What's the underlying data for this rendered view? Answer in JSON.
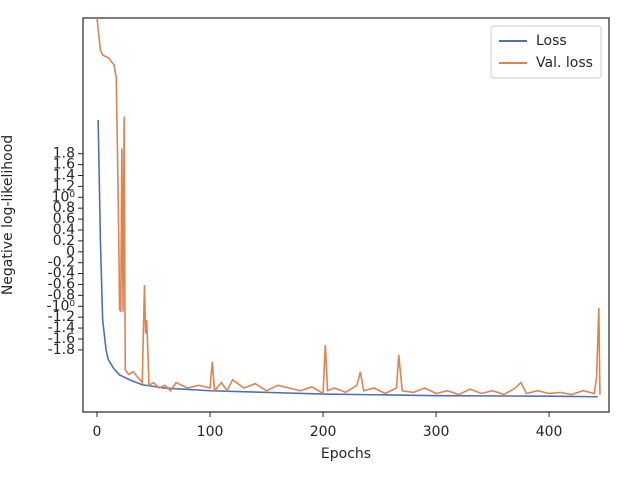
{
  "chart_data": {
    "type": "line",
    "x_label": "Epochs",
    "y_label": "Negative log-likelihood",
    "xlim": [
      -12.4,
      453
    ],
    "xticks": [
      0,
      100,
      200,
      300,
      400
    ],
    "ylim": [
      -2.94,
      4.29
    ],
    "yticks": [
      -1.8,
      -1.6,
      -1.4,
      -1.2,
      {
        "value": -1,
        "label": "-10⁰"
      },
      -0.8,
      -0.6,
      -0.4,
      -0.2,
      0,
      0.2,
      0.4,
      0.6,
      0.8,
      {
        "value": 1,
        "label": "10⁰"
      },
      1.2,
      1.4,
      1.6,
      1.8
    ],
    "legend": "upper right",
    "series": [
      {
        "name": "Loss",
        "color": "#4c72b0",
        "x": [
          1,
          3,
          5,
          8,
          10,
          15,
          20,
          30,
          40,
          60,
          100,
          150,
          200,
          300,
          400,
          443
        ],
        "values": [
          2.42,
          0.2,
          -1.25,
          -1.8,
          -1.98,
          -2.15,
          -2.26,
          -2.36,
          -2.44,
          -2.5,
          -2.55,
          -2.58,
          -2.61,
          -2.64,
          -2.65,
          -2.66
        ]
      },
      {
        "name": "Val. loss",
        "color": "#dd8452",
        "x": [
          0,
          3,
          5,
          10,
          15,
          17,
          18,
          19,
          20,
          21,
          22,
          23,
          24,
          25,
          28,
          32,
          36,
          40,
          42,
          43,
          44,
          46,
          50,
          55,
          60,
          65,
          70,
          80,
          90,
          100,
          102,
          104,
          110,
          115,
          120,
          130,
          140,
          150,
          160,
          170,
          180,
          190,
          200,
          202,
          204,
          210,
          220,
          230,
          233,
          236,
          245,
          255,
          265,
          267,
          270,
          280,
          290,
          300,
          310,
          320,
          330,
          340,
          350,
          360,
          370,
          375,
          380,
          390,
          400,
          410,
          420,
          430,
          440,
          442,
          444,
          445
        ],
        "values": [
          4.29,
          3.7,
          3.61,
          3.56,
          3.43,
          3.2,
          1.96,
          0.59,
          -1.06,
          -1.1,
          1.9,
          -1.1,
          2.48,
          -2.17,
          -2.25,
          -2.2,
          -2.3,
          -2.4,
          -0.61,
          -1.5,
          -1.25,
          -2.45,
          -2.4,
          -2.5,
          -2.45,
          -2.55,
          -2.4,
          -2.5,
          -2.45,
          -2.5,
          -2.02,
          -2.55,
          -2.4,
          -2.55,
          -2.35,
          -2.5,
          -2.42,
          -2.55,
          -2.45,
          -2.5,
          -2.55,
          -2.48,
          -2.6,
          -1.71,
          -2.55,
          -2.5,
          -2.58,
          -2.45,
          -2.2,
          -2.55,
          -2.5,
          -2.6,
          -2.5,
          -1.89,
          -2.55,
          -2.58,
          -2.5,
          -2.6,
          -2.55,
          -2.62,
          -2.52,
          -2.6,
          -2.55,
          -2.62,
          -2.5,
          -2.4,
          -2.6,
          -2.55,
          -2.6,
          -2.58,
          -2.62,
          -2.55,
          -2.6,
          -2.3,
          -1.03,
          -2.62
        ]
      }
    ]
  }
}
